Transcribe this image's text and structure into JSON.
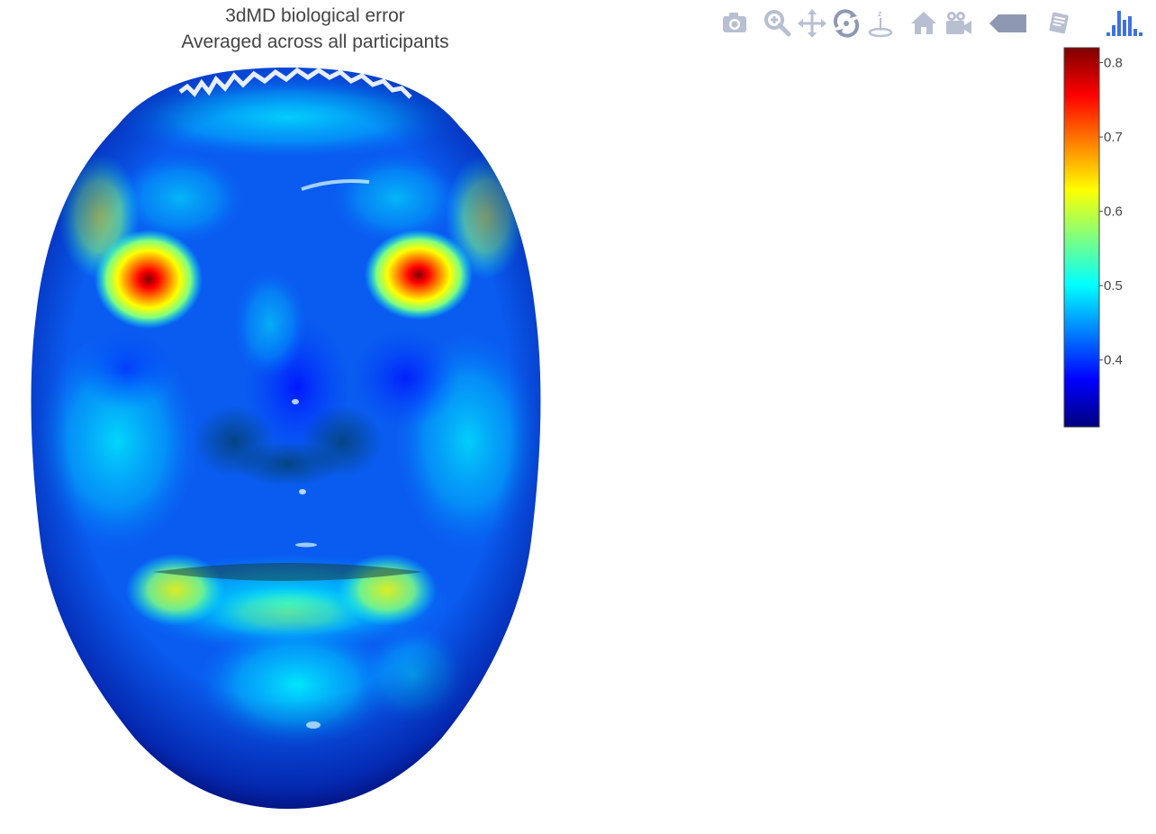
{
  "chart_data": {
    "type": "heatmap",
    "subtype": "3d-mesh-surface",
    "title_lines": [
      "3dMD biological error",
      "Averaged across all participants"
    ],
    "colorscale": [
      "#00007f",
      "#0000ff",
      "#0080ff",
      "#00ffff",
      "#80ff80",
      "#ffff00",
      "#ff8000",
      "#ff0000",
      "#7f0000"
    ],
    "colorbar": {
      "range": [
        0.31,
        0.82
      ],
      "ticks": [
        0.4,
        0.5,
        0.6,
        0.7,
        0.8
      ],
      "tick_labels": [
        "0.4",
        "0.5",
        "0.6",
        "0.7",
        "0.8"
      ]
    },
    "surface_hotspots": [
      {
        "region": "right eye inner corner",
        "value": 0.82
      },
      {
        "region": "left eye inner corner",
        "value": 0.8
      },
      {
        "region": "upper lip corners",
        "value": 0.62
      },
      {
        "region": "cheeks and chin",
        "value": 0.5
      },
      {
        "region": "forehead",
        "value": 0.42
      },
      {
        "region": "face border",
        "value": 0.33
      }
    ]
  },
  "modebar": {
    "buttons": [
      {
        "name": "camera-icon",
        "title": "Download plot as a png"
      },
      {
        "name": "zoom-icon",
        "title": "Zoom"
      },
      {
        "name": "pan-icon",
        "title": "Pan"
      },
      {
        "name": "orbit-rotation-icon",
        "title": "Orbital rotation"
      },
      {
        "name": "turntable-rotation-icon",
        "title": "Turntable rotation"
      },
      {
        "name": "home-icon",
        "title": "Reset camera to default"
      },
      {
        "name": "movie-camera-icon",
        "title": "Reset camera to last save"
      },
      {
        "name": "tag-icon",
        "title": "Toggle show closest data on hover"
      },
      {
        "name": "spikelines-icon",
        "title": "Toggle Spike Lines"
      },
      {
        "name": "plotly-logo-icon",
        "title": "Produced with Plotly"
      }
    ]
  },
  "colors": {
    "modebar_icon": "#b7bfd1",
    "modebar_icon_active": "#8e98b3",
    "plotly_logo": "#3f72dc",
    "text": "#444444"
  }
}
